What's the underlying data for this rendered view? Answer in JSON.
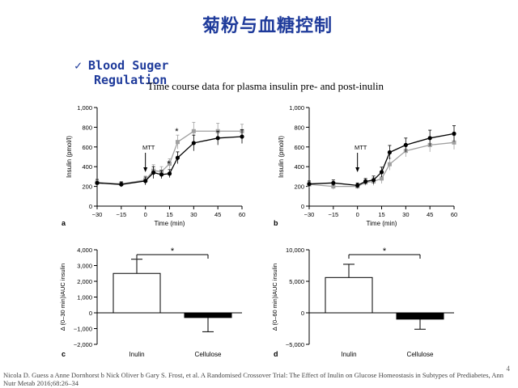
{
  "slide": {
    "title": "菊粉与血糖控制",
    "bullet_check": "✓",
    "bullet_line1": "Blood Suger",
    "bullet_line2": "Regulation",
    "subtitle": "Time course data for plasma insulin pre- and post-inulin",
    "citation": "Nicola D. Guess a Anne Dornhorst b Nick Oliver b Gary S. Frost, et al. A Randomised Crossover Trial: The Effect of Inulin on Glucose Homeostasis in Subtypes of Prediabetes, Ann Nutr Metab 2016;68:26–34",
    "page_number": "4"
  },
  "colors": {
    "title": "#1f3b9b",
    "pre": "#000000",
    "post": "#a0a0a0"
  },
  "chart_data": [
    {
      "id": "a",
      "type": "line",
      "panel_label": "a",
      "xlabel": "Time (min)",
      "ylabel": "Insulin (pmol/l)",
      "x": [
        -30,
        -15,
        0,
        5,
        10,
        15,
        20,
        30,
        45,
        60
      ],
      "xticks": [
        -30,
        -15,
        0,
        15,
        30,
        45,
        60
      ],
      "xtick_labels": [
        "−30",
        "−15",
        "0",
        "15",
        "30",
        "45",
        "60"
      ],
      "yticks": [
        0,
        200,
        400,
        600,
        800,
        1000
      ],
      "ytick_labels": [
        "0",
        "200",
        "400",
        "600",
        "800",
        "1,000"
      ],
      "xlim": [
        -30,
        60
      ],
      "ylim": [
        0,
        1000
      ],
      "annotation": "MTT",
      "annotation_x": 0,
      "stars": [
        {
          "x": 15,
          "y": 400,
          "label": "*"
        },
        {
          "x": 20,
          "y": 730,
          "label": "*"
        }
      ],
      "series": [
        {
          "name": "pre-inulin",
          "style": "pre",
          "values": [
            235,
            220,
            255,
            340,
            320,
            330,
            490,
            640,
            690,
            705
          ],
          "err": [
            35,
            25,
            40,
            60,
            40,
            40,
            60,
            80,
            70,
            70
          ]
        },
        {
          "name": "post-inulin",
          "style": "post",
          "values": [
            240,
            225,
            265,
            360,
            350,
            430,
            650,
            760,
            760,
            760
          ],
          "err": [
            30,
            25,
            40,
            60,
            50,
            50,
            70,
            90,
            80,
            70
          ]
        }
      ]
    },
    {
      "id": "b",
      "type": "line",
      "panel_label": "b",
      "xlabel": "Time (min)",
      "ylabel": "Insulin (pmol/l)",
      "x": [
        -30,
        -15,
        0,
        5,
        10,
        15,
        20,
        30,
        45,
        60
      ],
      "xticks": [
        -30,
        -15,
        0,
        15,
        30,
        45,
        60
      ],
      "xtick_labels": [
        "−30",
        "−15",
        "0",
        "15",
        "30",
        "45",
        "60"
      ],
      "yticks": [
        0,
        200,
        400,
        600,
        800,
        1000
      ],
      "ytick_labels": [
        "0",
        "200",
        "400",
        "600",
        "800",
        "1,000"
      ],
      "xlim": [
        -30,
        60
      ],
      "ylim": [
        0,
        1000
      ],
      "annotation": "MTT",
      "annotation_x": 0,
      "stars": [],
      "series": [
        {
          "name": "pre-inulin",
          "style": "pre",
          "values": [
            225,
            235,
            210,
            250,
            265,
            345,
            545,
            620,
            690,
            735
          ],
          "err": [
            30,
            30,
            25,
            30,
            40,
            50,
            70,
            70,
            80,
            80
          ]
        },
        {
          "name": "post-inulin",
          "style": "post",
          "values": [
            220,
            200,
            200,
            240,
            250,
            280,
            425,
            560,
            620,
            645
          ],
          "err": [
            30,
            30,
            25,
            30,
            40,
            50,
            60,
            60,
            70,
            70
          ]
        }
      ]
    },
    {
      "id": "c",
      "type": "bar",
      "panel_label": "c",
      "ylabel": "Δ (0–30 min)iAUC insulin",
      "categories": [
        "Inulin",
        "Cellulose"
      ],
      "values": [
        2500,
        -300
      ],
      "err": [
        900,
        900
      ],
      "yticks": [
        -2000,
        -1000,
        0,
        1000,
        2000,
        3000,
        4000
      ],
      "ytick_labels": [
        "−2,000",
        "−1,000",
        "0",
        "1,000",
        "2,000",
        "3,000",
        "4,000"
      ],
      "ylim": [
        -2000,
        4000
      ],
      "significance": "*"
    },
    {
      "id": "d",
      "type": "bar",
      "panel_label": "d",
      "ylabel": "Δ (0–60 min)iAUC insulin",
      "categories": [
        "Inulin",
        "Cellulose"
      ],
      "values": [
        5600,
        -1000
      ],
      "err": [
        2100,
        1600
      ],
      "yticks": [
        -5000,
        0,
        5000,
        10000
      ],
      "ytick_labels": [
        "−5,000",
        "0",
        "5,000",
        "10,000"
      ],
      "ylim": [
        -5000,
        10000
      ],
      "significance": "*"
    }
  ]
}
